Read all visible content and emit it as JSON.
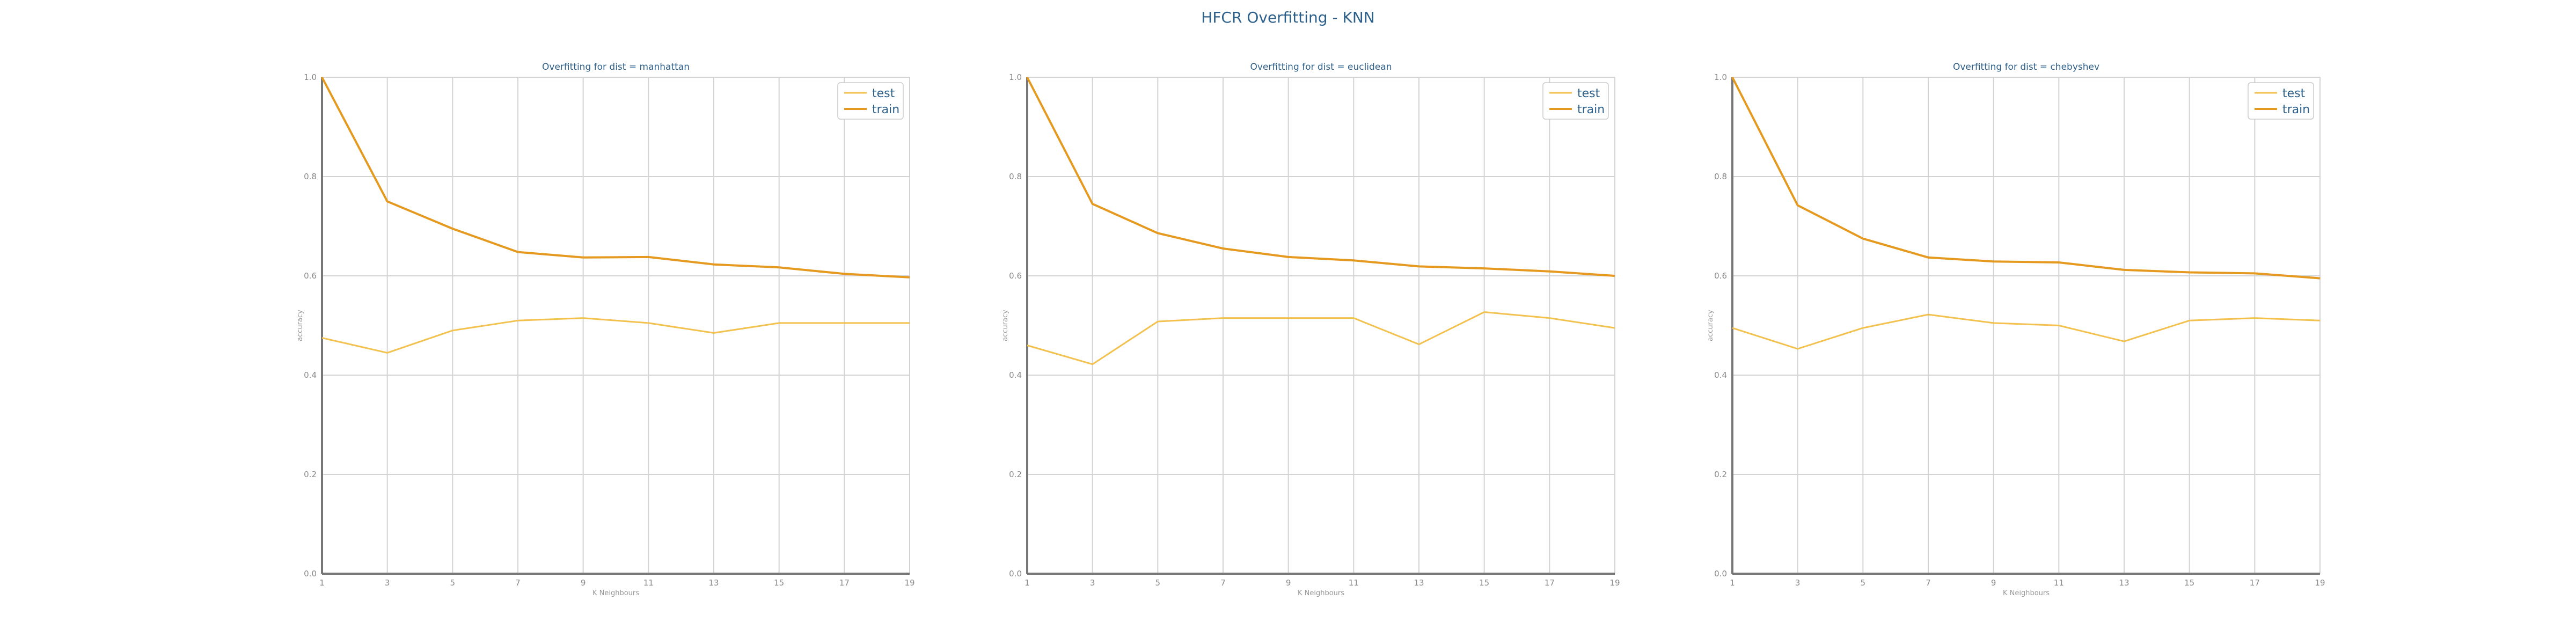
{
  "figure": {
    "title": "HFCR Overfitting - KNN"
  },
  "chart_data": [
    {
      "type": "line",
      "title": "Overfitting for dist = manhattan",
      "xlabel": "K Neighbours",
      "ylabel": "accuracy",
      "x": [
        1,
        3,
        5,
        7,
        9,
        11,
        13,
        15,
        17,
        19
      ],
      "xticks": [
        "1",
        "3",
        "5",
        "7",
        "9",
        "11",
        "13",
        "15",
        "17",
        "19"
      ],
      "yticks": [
        "0.0",
        "0.2",
        "0.4",
        "0.6",
        "0.8",
        "1.0"
      ],
      "ylim": [
        0,
        1
      ],
      "grid": true,
      "legend_position": "top-right",
      "series": [
        {
          "name": "test",
          "color": "#f2c14e",
          "values": [
            0.475,
            0.445,
            0.49,
            0.51,
            0.515,
            0.505,
            0.485,
            0.505,
            0.505,
            0.505
          ]
        },
        {
          "name": "train",
          "color": "#e59a1f",
          "values": [
            1.0,
            0.75,
            0.695,
            0.648,
            0.637,
            0.638,
            0.623,
            0.617,
            0.604,
            0.597
          ]
        }
      ]
    },
    {
      "type": "line",
      "title": "Overfitting for dist = euclidean",
      "xlabel": "K Neighbours",
      "ylabel": "accuracy",
      "x": [
        1,
        3,
        5,
        7,
        9,
        11,
        13,
        15,
        17,
        19
      ],
      "xticks": [
        "1",
        "3",
        "5",
        "7",
        "9",
        "11",
        "13",
        "15",
        "17",
        "19"
      ],
      "yticks": [
        "0.0",
        "0.2",
        "0.4",
        "0.6",
        "0.8",
        "1.0"
      ],
      "ylim": [
        0,
        1
      ],
      "grid": true,
      "legend_position": "top-right",
      "series": [
        {
          "name": "test",
          "color": "#f2c14e",
          "values": [
            0.46,
            0.422,
            0.508,
            0.515,
            0.515,
            0.515,
            0.462,
            0.527,
            0.515,
            0.495
          ]
        },
        {
          "name": "train",
          "color": "#e59a1f",
          "values": [
            1.0,
            0.745,
            0.686,
            0.655,
            0.638,
            0.631,
            0.619,
            0.615,
            0.609,
            0.6
          ]
        }
      ]
    },
    {
      "type": "line",
      "title": "Overfitting for dist = chebyshev",
      "xlabel": "K Neighbours",
      "ylabel": "accuracy",
      "x": [
        1,
        3,
        5,
        7,
        9,
        11,
        13,
        15,
        17,
        19
      ],
      "xticks": [
        "1",
        "3",
        "5",
        "7",
        "9",
        "11",
        "13",
        "15",
        "17",
        "19"
      ],
      "yticks": [
        "0.0",
        "0.2",
        "0.4",
        "0.6",
        "0.8",
        "1.0"
      ],
      "ylim": [
        0,
        1
      ],
      "grid": true,
      "legend_position": "top-right",
      "series": [
        {
          "name": "test",
          "color": "#f2c14e",
          "values": [
            0.495,
            0.453,
            0.495,
            0.522,
            0.505,
            0.5,
            0.468,
            0.51,
            0.515,
            0.51
          ]
        },
        {
          "name": "train",
          "color": "#e59a1f",
          "values": [
            1.0,
            0.742,
            0.675,
            0.637,
            0.629,
            0.627,
            0.612,
            0.607,
            0.605,
            0.595
          ]
        }
      ]
    }
  ]
}
